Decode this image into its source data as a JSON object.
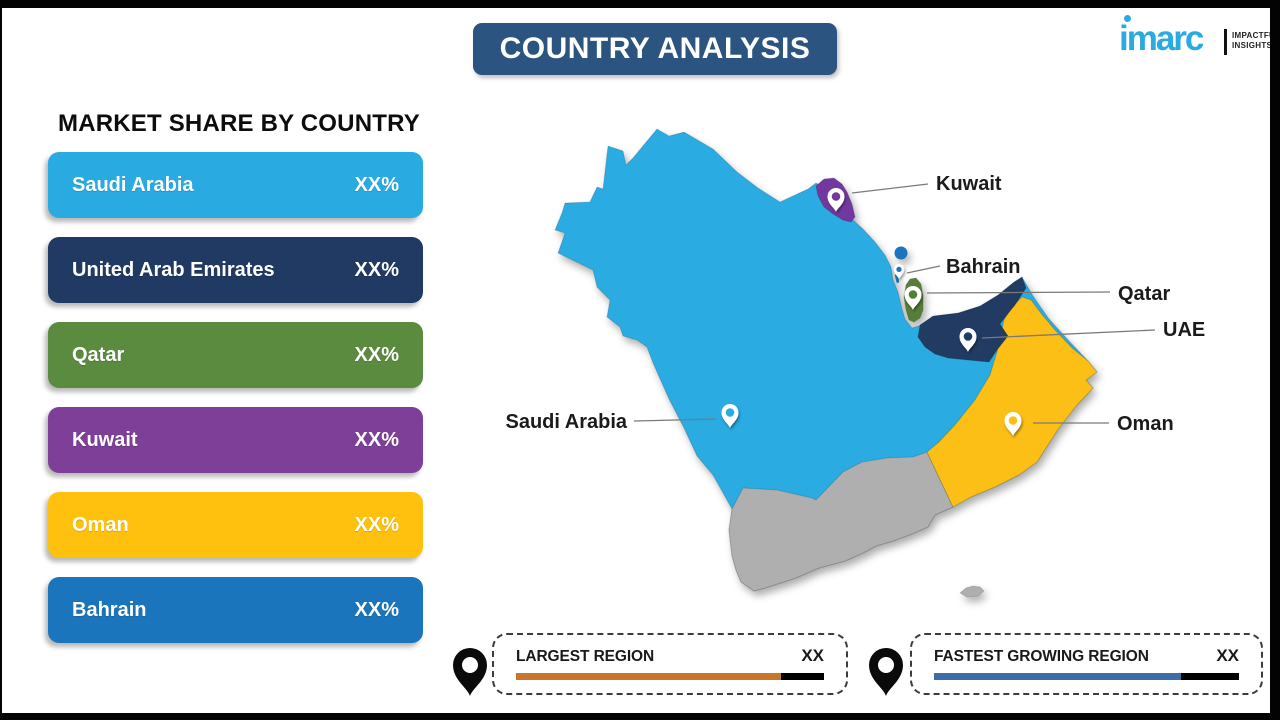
{
  "header": {
    "title": "COUNTRY ANALYSIS"
  },
  "logo": {
    "brand": "imarc",
    "tagline1": "IMPACTFUL",
    "tagline2": "INSIGHTS"
  },
  "market_share": {
    "heading": "MARKET SHARE BY COUNTRY",
    "items": [
      {
        "label": "Saudi Arabia",
        "value": "XX%",
        "color": "#29ABE2"
      },
      {
        "label": "United Arab Emirates",
        "value": "XX%",
        "color": "#203A64"
      },
      {
        "label": "Qatar",
        "value": "XX%",
        "color": "#5B8B3E"
      },
      {
        "label": "Kuwait",
        "value": "XX%",
        "color": "#7D3F98"
      },
      {
        "label": "Oman",
        "value": "XX%",
        "color": "#FFC10E"
      },
      {
        "label": "Bahrain",
        "value": "XX%",
        "color": "#1B75BC"
      }
    ]
  },
  "map": {
    "labels": {
      "kuwait": "Kuwait",
      "bahrain": "Bahrain",
      "qatar": "Qatar",
      "uae": "UAE",
      "saudi": "Saudi Arabia",
      "oman": "Oman"
    },
    "colors": {
      "saudi": "#29ABE2",
      "uae": "#203A64",
      "qatar": "#567E38",
      "kuwait": "#7338A0",
      "oman": "#FCBF12",
      "bahrain": "#1B75BC",
      "yemen": "#AFAFAF"
    }
  },
  "footer": {
    "largest": {
      "label": "LARGEST REGION",
      "value": "XX",
      "bar_color": "#C8762B",
      "fill_pct": 86
    },
    "fastest": {
      "label": "FASTEST GROWING REGION",
      "value": "XX",
      "bar_color": "#3E6CA9",
      "fill_pct": 81
    }
  }
}
